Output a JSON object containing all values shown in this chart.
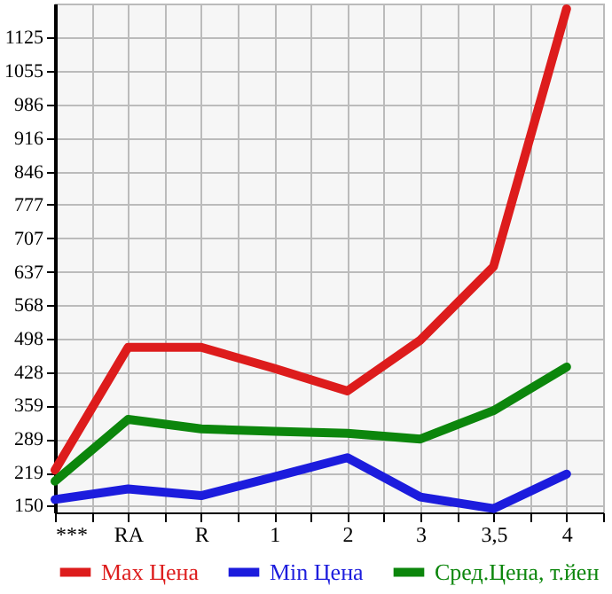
{
  "chart_data": {
    "type": "line",
    "categories": [
      "***",
      "RA",
      "R",
      "1",
      "2",
      "3",
      "3,5",
      "4"
    ],
    "series": [
      {
        "name": "Max Цена",
        "color": "#dd1c1c",
        "values": [
          224,
          480,
          480,
          436,
          389,
          495,
          648,
          1185
        ]
      },
      {
        "name": "Min Цена",
        "color": "#1c1cdd",
        "values": [
          163,
          185,
          171,
          210,
          250,
          168,
          144,
          216
        ]
      },
      {
        "name": "Сред.Цена, т.йен",
        "color": "#0c860c",
        "values": [
          201,
          330,
          310,
          305,
          301,
          289,
          348,
          439
        ]
      }
    ],
    "ylim": [
      136,
      1196
    ],
    "yticks": [
      150,
      219,
      289,
      359,
      428,
      498,
      568,
      637,
      707,
      777,
      846,
      916,
      986,
      1055,
      1125
    ],
    "grid": true,
    "legend": "bottom left",
    "marker": "none",
    "line_style": "solid"
  }
}
